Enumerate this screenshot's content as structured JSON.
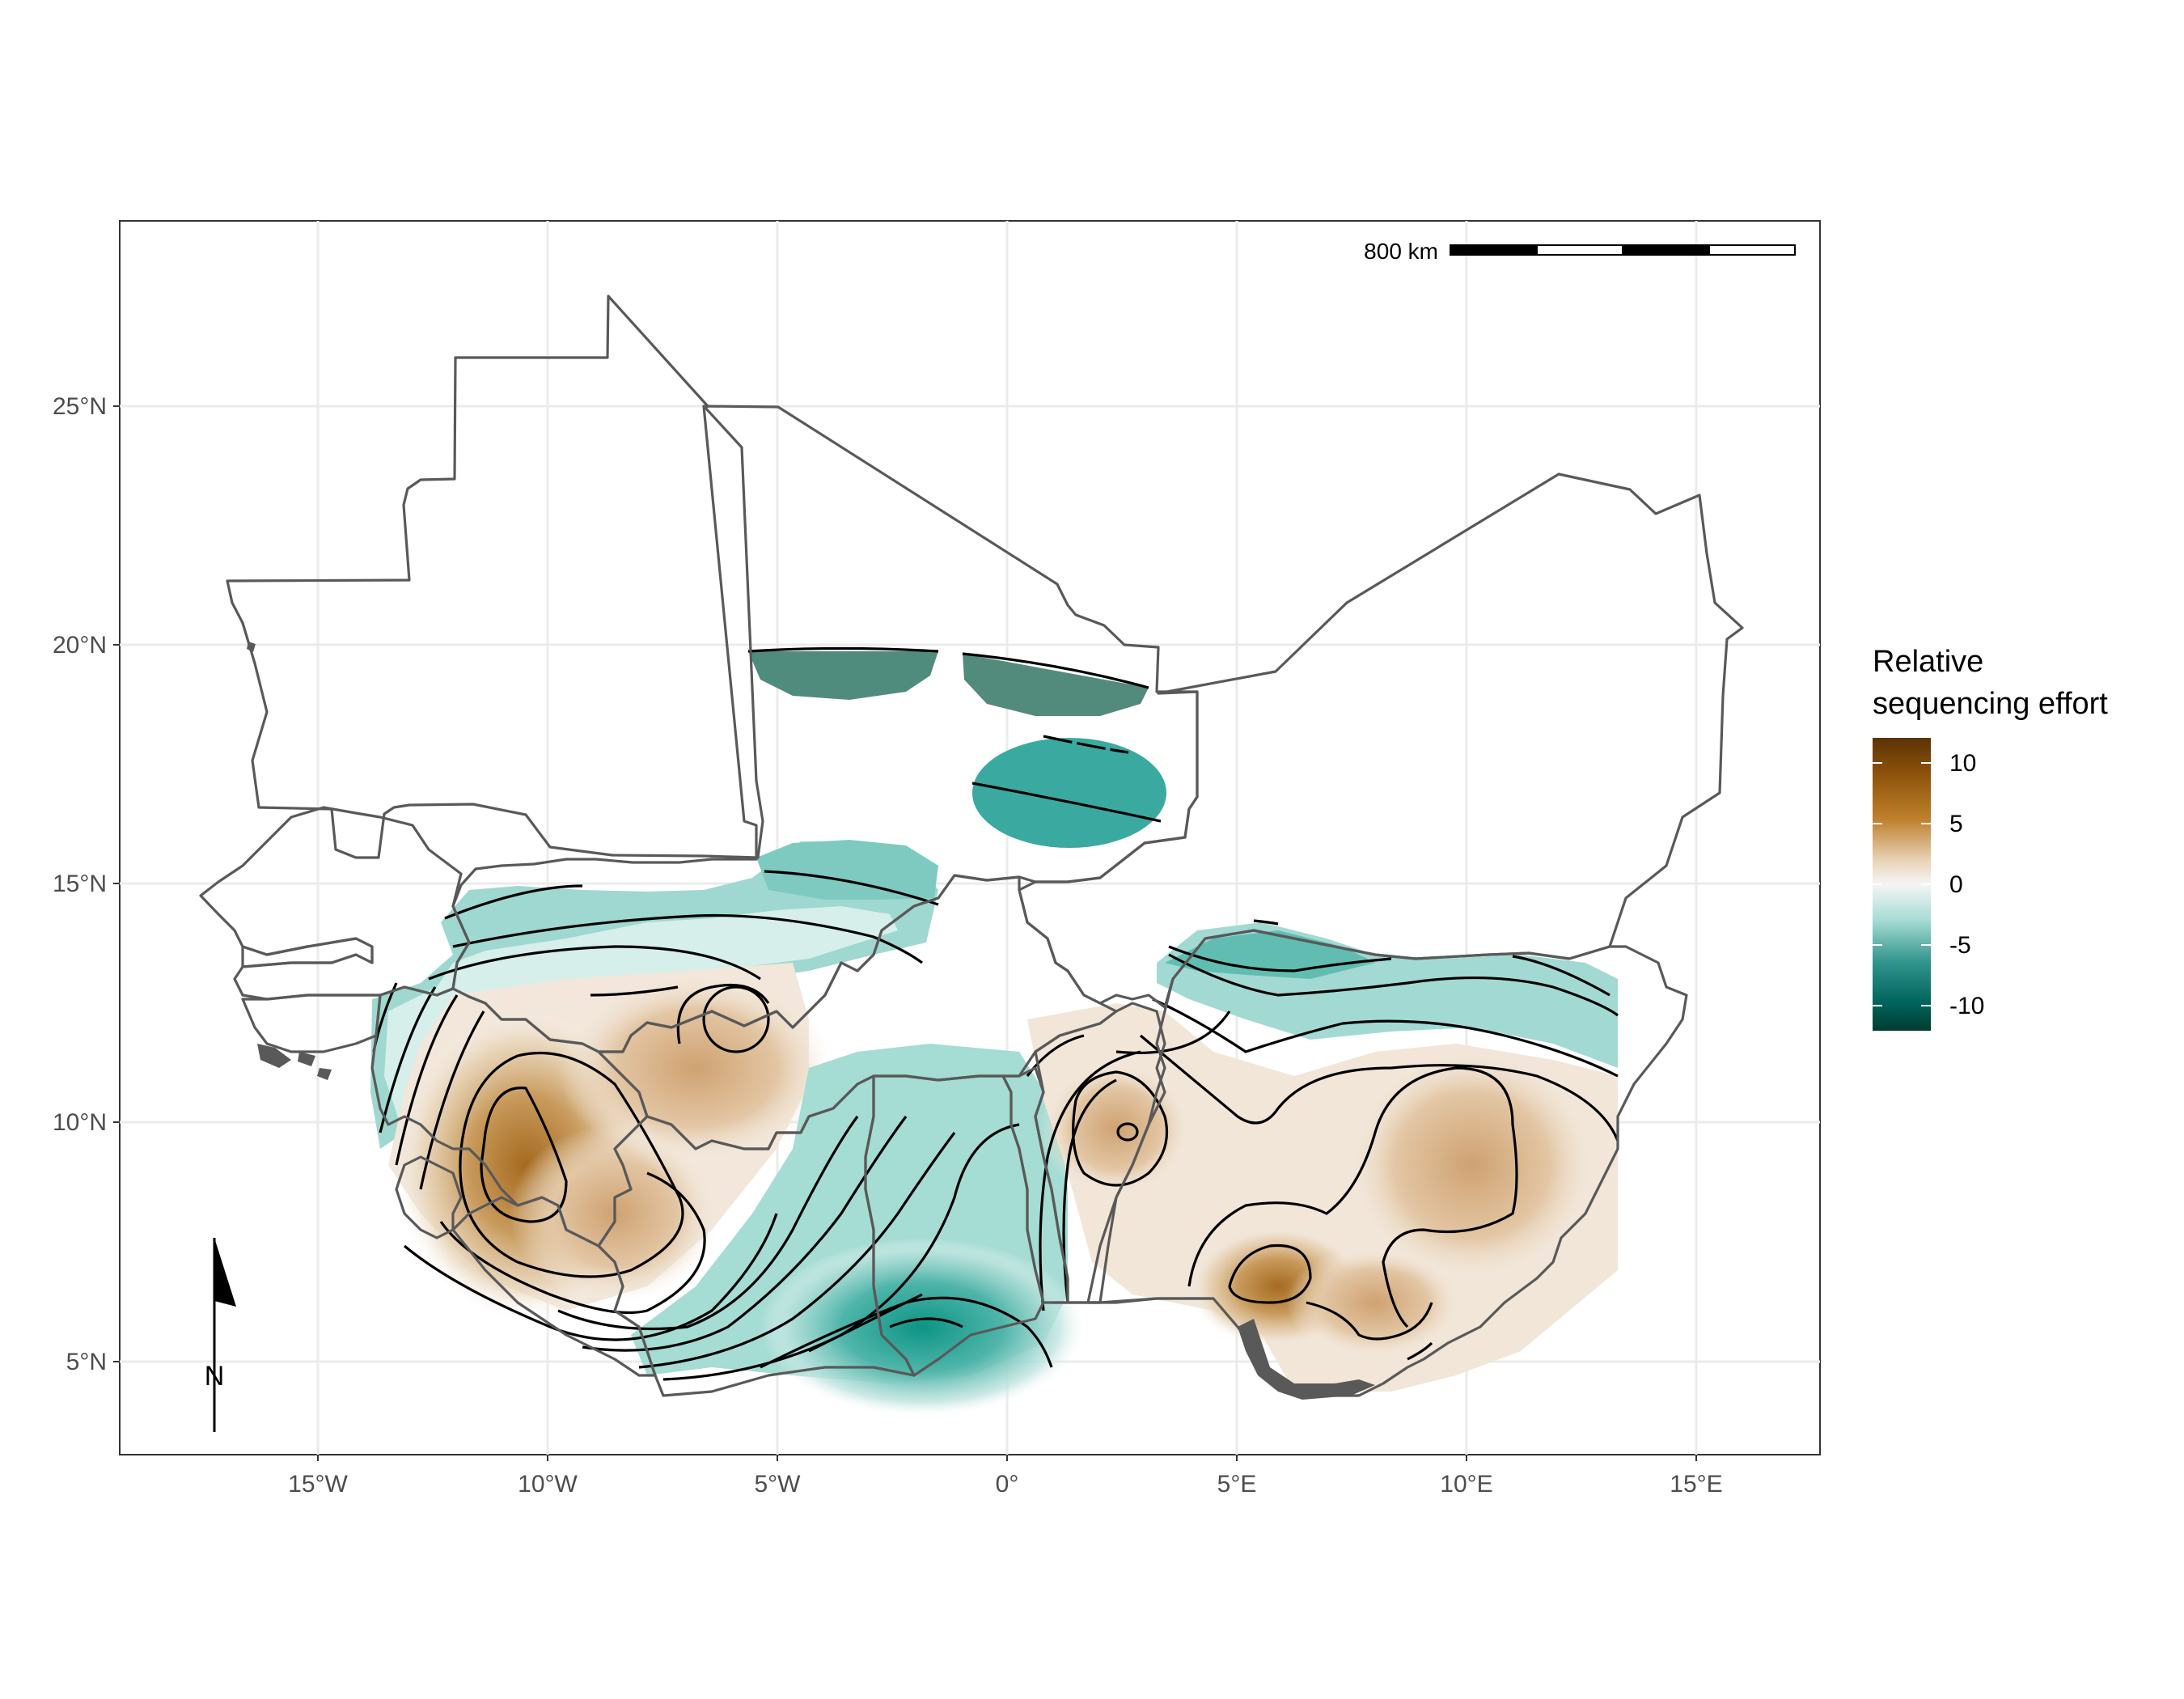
{
  "map": {
    "axes": {
      "x_ticks": [
        {
          "label": "15°W",
          "lon": -15
        },
        {
          "label": "10°W",
          "lon": -10
        },
        {
          "label": "5°W",
          "lon": -5
        },
        {
          "label": "0°",
          "lon": 0
        },
        {
          "label": "5°E",
          "lon": 5
        },
        {
          "label": "10°E",
          "lon": 10
        },
        {
          "label": "15°E",
          "lon": 15
        }
      ],
      "y_ticks": [
        {
          "label": "5°N",
          "lat": 5
        },
        {
          "label": "10°N",
          "lat": 10
        },
        {
          "label": "15°N",
          "lat": 15
        },
        {
          "label": "20°N",
          "lat": 20
        },
        {
          "label": "25°N",
          "lat": 25
        }
      ],
      "lon_range": [
        -19,
        17.5
      ],
      "lat_range": [
        3,
        28.5
      ],
      "grid": true
    },
    "scale_bar": {
      "label": "800 km"
    },
    "north_arrow": {
      "label": "N"
    },
    "colors": {
      "brown_dark": "#8c510a",
      "brown_mid": "#bf812d",
      "tan": "#dfc27d",
      "neutral": "#f5f5f5",
      "teal_light": "#80cdc1",
      "teal_mid": "#35978f",
      "teal_dark": "#01665e",
      "border": "#595959"
    }
  },
  "legend": {
    "title_line1": "Relative",
    "title_line2": "sequencing effort",
    "labels": [
      "10",
      "5",
      "0",
      "-5",
      "-10"
    ]
  }
}
